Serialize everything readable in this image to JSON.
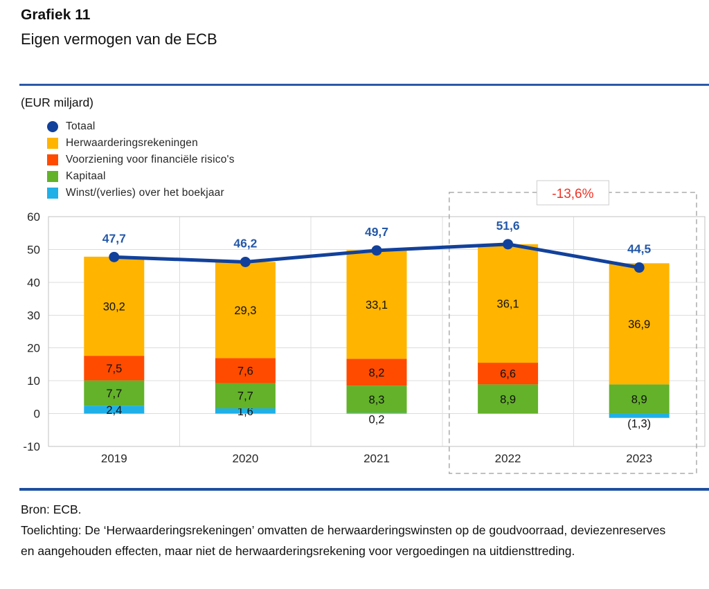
{
  "header": {
    "title": "Grafiek 11",
    "subtitle": "Eigen vermogen van de ECB"
  },
  "chart_data": {
    "type": "bar",
    "subtype": "stacked-bar-with-line",
    "unit_label": "(EUR miljard)",
    "categories": [
      "2019",
      "2020",
      "2021",
      "2022",
      "2023"
    ],
    "series": [
      {
        "name": "Herwaarderingsrekeningen",
        "color": "#FFB400",
        "values": [
          30.2,
          29.3,
          33.1,
          36.1,
          36.9
        ],
        "labels": [
          "30,2",
          "29,3",
          "33,1",
          "36,1",
          "36,9"
        ]
      },
      {
        "name": "Voorziening voor financiële risico's",
        "color": "#FF4B00",
        "values": [
          7.5,
          7.6,
          8.2,
          6.6,
          0
        ],
        "labels": [
          "7,5",
          "7,6",
          "8,2",
          "6,6",
          ""
        ]
      },
      {
        "name": "Kapitaal",
        "color": "#63B229",
        "values": [
          7.7,
          7.7,
          8.3,
          8.9,
          8.9
        ],
        "labels": [
          "7,7",
          "7,7",
          "8,3",
          "8,9",
          "8,9"
        ]
      },
      {
        "name": "Winst/(verlies) over het boekjaar",
        "color": "#1FB0E8",
        "values": [
          2.4,
          1.6,
          0.2,
          0,
          -1.3
        ],
        "labels": [
          "2,4",
          "1,6",
          "0,2",
          "",
          "(1,3)"
        ]
      }
    ],
    "line_series": {
      "name": "Totaal",
      "color": "#12419B",
      "label_color": "#2458A8",
      "values": [
        47.7,
        46.2,
        49.7,
        51.6,
        44.5
      ],
      "labels": [
        "47,7",
        "46,2",
        "49,7",
        "51,6",
        "44,5"
      ]
    },
    "legend": [
      {
        "label": "Totaal",
        "marker": "circle",
        "color": "#12419B"
      },
      {
        "label": "Herwaarderingsrekeningen",
        "marker": "square",
        "color": "#FFB400"
      },
      {
        "label": "Voorziening voor financiële risico's",
        "marker": "square",
        "color": "#FF4B00"
      },
      {
        "label": "Kapitaal",
        "marker": "square",
        "color": "#63B229"
      },
      {
        "label": "Winst/(verlies) over het boekjaar",
        "marker": "square",
        "color": "#1FB0E8"
      }
    ],
    "ylim": [
      -10,
      60
    ],
    "yticks": [
      "60",
      "50",
      "40",
      "30",
      "20",
      "10",
      "0",
      "-10"
    ],
    "grid": true,
    "legend_position": "top-left",
    "annotation": {
      "text": "-13,6%",
      "text_color": "#EE3124",
      "highlight_categories": [
        "2022",
        "2023"
      ]
    }
  },
  "footer": {
    "source": "Bron: ECB.",
    "note": "Toelichting: De ‘Herwaarderingsrekeningen’ omvatten de herwaarderingswinsten op de goudvoorraad, deviezenreserves en aangehouden effecten, maar niet de herwaarderingsrekening voor vergoedingen na uitdiensttreding."
  }
}
